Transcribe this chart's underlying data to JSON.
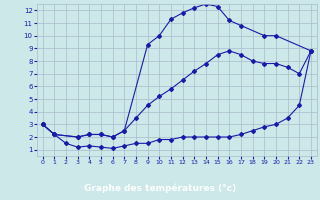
{
  "title": "Graphe des températures (°c)",
  "bg_color": "#cce8e8",
  "grid_color": "#aabbcc",
  "line_color": "#1a1aaa",
  "bar_color": "#1a1aaa",
  "text_color": "#1a1aaa",
  "xlabel_bg": "#1a1aaa",
  "xlabel_fg": "#ffffff",
  "xlim": [
    -0.5,
    23.5
  ],
  "ylim": [
    0.5,
    12.5
  ],
  "xticks": [
    0,
    1,
    2,
    3,
    4,
    5,
    6,
    7,
    8,
    9,
    10,
    11,
    12,
    13,
    14,
    15,
    16,
    17,
    18,
    19,
    20,
    21,
    22,
    23
  ],
  "yticks": [
    1,
    2,
    3,
    4,
    5,
    6,
    7,
    8,
    9,
    10,
    11,
    12
  ],
  "s1_x": [
    0,
    1,
    3,
    4,
    5,
    6,
    7,
    9,
    10,
    11,
    12,
    13,
    14,
    15,
    16,
    17,
    19,
    20,
    23
  ],
  "s1_y": [
    3.0,
    2.2,
    2.0,
    2.2,
    2.2,
    2.0,
    2.5,
    9.3,
    10.0,
    11.3,
    11.8,
    12.2,
    12.5,
    12.3,
    11.2,
    10.8,
    10.0,
    10.0,
    8.8
  ],
  "s2_x": [
    0,
    1,
    3,
    4,
    5,
    6,
    7,
    8,
    9,
    10,
    11,
    12,
    13,
    14,
    15,
    16,
    17,
    18,
    19,
    20,
    21,
    22,
    23
  ],
  "s2_y": [
    3.0,
    2.2,
    2.0,
    2.2,
    2.2,
    2.0,
    2.5,
    3.5,
    4.5,
    5.2,
    5.8,
    6.5,
    7.2,
    7.8,
    8.5,
    8.8,
    8.5,
    8.0,
    7.8,
    7.8,
    7.5,
    7.0,
    8.8
  ],
  "s3_x": [
    0,
    1,
    2,
    3,
    4,
    5,
    6,
    7,
    8,
    9,
    10,
    11,
    12,
    13,
    14,
    15,
    16,
    17,
    18,
    19,
    20,
    21,
    22,
    23
  ],
  "s3_y": [
    3.0,
    2.2,
    1.5,
    1.2,
    1.3,
    1.2,
    1.1,
    1.3,
    1.5,
    1.5,
    1.8,
    1.8,
    2.0,
    2.0,
    2.0,
    2.0,
    2.0,
    2.2,
    2.5,
    2.8,
    3.0,
    3.5,
    4.5,
    8.8
  ]
}
